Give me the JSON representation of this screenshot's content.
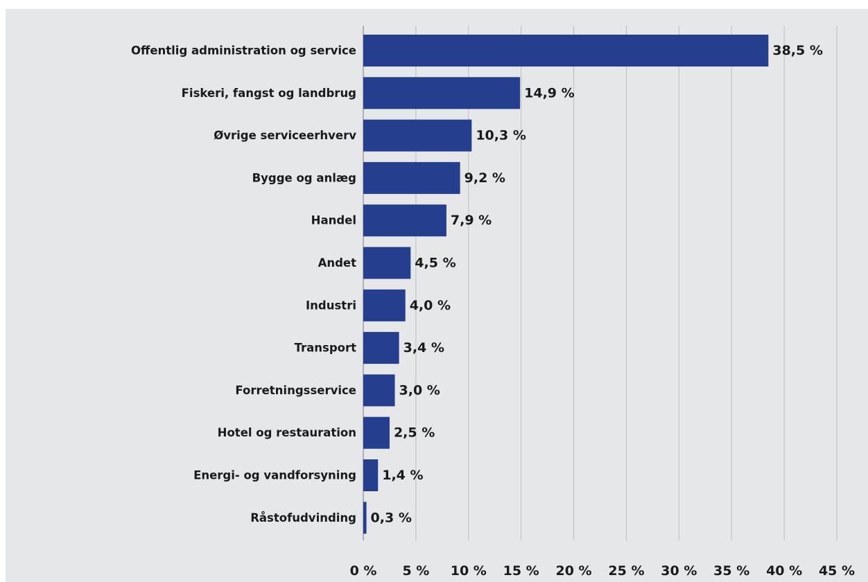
{
  "chart_data": {
    "type": "bar",
    "orientation": "horizontal",
    "categories": [
      "Offentlig administration og service",
      "Fiskeri, fangst og landbrug",
      "Øvrige serviceerhverv",
      "Bygge og anlæg",
      "Handel",
      "Andet",
      "Industri",
      "Transport",
      "Forretningsservice",
      "Hotel og restauration",
      "Energi- og vandforsyning",
      "Råstofudvinding"
    ],
    "values": [
      38.5,
      14.9,
      10.3,
      9.2,
      7.9,
      4.5,
      4.0,
      3.4,
      3.0,
      2.5,
      1.4,
      0.3
    ],
    "value_labels": [
      "38,5 %",
      "14,9 %",
      "10,3 %",
      "9,2 %",
      "7,9 %",
      "4,5 %",
      "4,0 %",
      "3,4 %",
      "3,0 %",
      "2,5 %",
      "1,4 %",
      "0,3 %"
    ],
    "xlim": [
      0,
      45
    ],
    "x_ticks": [
      0,
      5,
      10,
      15,
      20,
      25,
      30,
      35,
      40,
      45
    ],
    "x_tick_labels": [
      "0 %",
      "5 %",
      "10 %",
      "15 %",
      "20 %",
      "25 %",
      "30 %",
      "35 %",
      "40 %",
      "45 %"
    ],
    "title": "",
    "xlabel": "",
    "ylabel": "",
    "grid": "vertical",
    "legend": "none",
    "colors": {
      "bar": "#253F8E",
      "panel_background": "#E6E7E8",
      "gridline": "#BDBEC0",
      "axis": "#999A9C",
      "text": "#1A1A1A"
    }
  }
}
